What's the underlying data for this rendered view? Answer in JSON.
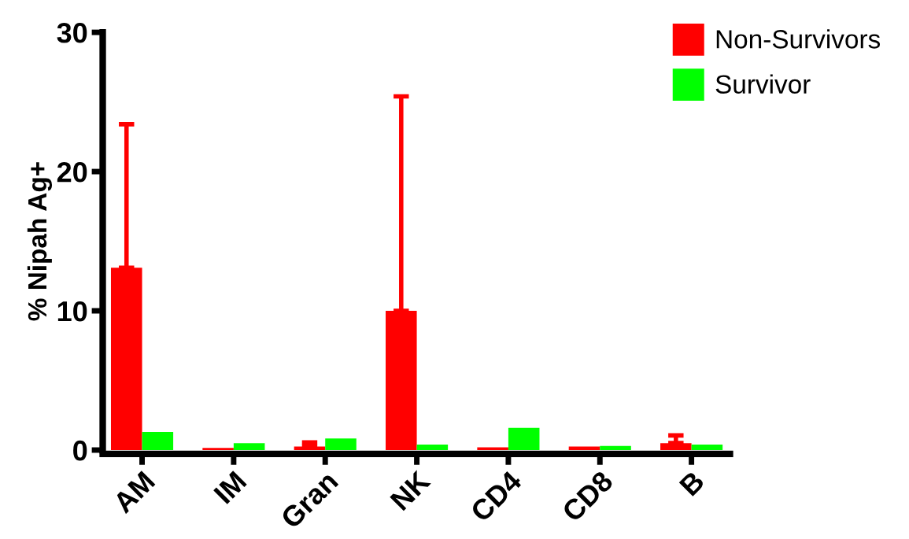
{
  "chart_data": {
    "type": "bar",
    "ylabel": "% Nipah Ag+",
    "categories": [
      "AM",
      "IM",
      "Gran",
      "NK",
      "CD4",
      "CD8",
      "B"
    ],
    "series": [
      {
        "name": "Non-Survivors",
        "color": "#ff0000",
        "values": [
          13.1,
          0.15,
          0.25,
          10.0,
          0.2,
          0.25,
          0.5
        ],
        "errors": [
          10.3,
          null,
          0.3,
          15.4,
          null,
          null,
          0.55
        ]
      },
      {
        "name": "Survivor",
        "color": "#00ff00",
        "values": [
          1.3,
          0.5,
          0.83,
          0.4,
          1.6,
          0.3,
          0.4
        ]
      }
    ],
    "ylim": [
      0,
      30
    ],
    "yticks": [
      0,
      10,
      20,
      30
    ],
    "grid": false,
    "legend": "top right"
  }
}
